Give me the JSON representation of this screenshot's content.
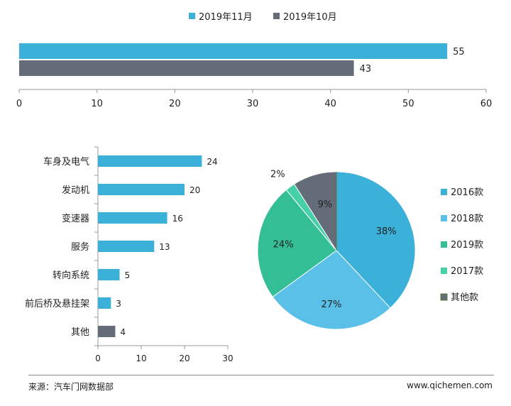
{
  "colors": {
    "cyan": "#3bb0d8",
    "slate": "#636c78",
    "light_blue": "#5bc0e8",
    "green": "#34be96",
    "mint": "#45d0a8",
    "olive": "#5a7a3a"
  },
  "chart_data": [
    {
      "type": "bar",
      "orientation": "horizontal",
      "categories": [
        ""
      ],
      "series": [
        {
          "name": "2019年11月",
          "values": [
            55
          ],
          "color": "#3bb0d8"
        },
        {
          "name": "2019年10月",
          "values": [
            43
          ],
          "color": "#636c78"
        }
      ],
      "xlim": [
        0,
        60
      ],
      "xticks": [
        0,
        10,
        20,
        30,
        40,
        50,
        60
      ],
      "legend": "top",
      "grid": false
    },
    {
      "type": "bar",
      "orientation": "horizontal",
      "categories": [
        "车身及电气",
        "发动机",
        "变速器",
        "服务",
        "转向系统",
        "前后桥及悬挂架",
        "其他"
      ],
      "values": [
        24,
        20,
        16,
        13,
        5,
        3,
        4
      ],
      "colors": [
        "#3bb0d8",
        "#3bb0d8",
        "#3bb0d8",
        "#3bb0d8",
        "#3bb0d8",
        "#3bb0d8",
        "#636c78"
      ],
      "xlim": [
        0,
        30
      ],
      "xticks": [
        0,
        10,
        20,
        30
      ],
      "grid": false
    },
    {
      "type": "pie",
      "labels": [
        "2016款",
        "2018款",
        "2019款",
        "2017款",
        "其他款"
      ],
      "values": [
        38,
        27,
        24,
        2,
        9
      ],
      "value_labels": [
        "38%",
        "27%",
        "24%",
        "2%",
        "9%"
      ],
      "colors": [
        "#3bb0d8",
        "#5bc0e8",
        "#34be96",
        "#45d0a8",
        "#636c78"
      ],
      "legend": "right"
    }
  ],
  "footer": {
    "source": "来源：汽车门网数据部",
    "site": "www.qichemen.com"
  }
}
